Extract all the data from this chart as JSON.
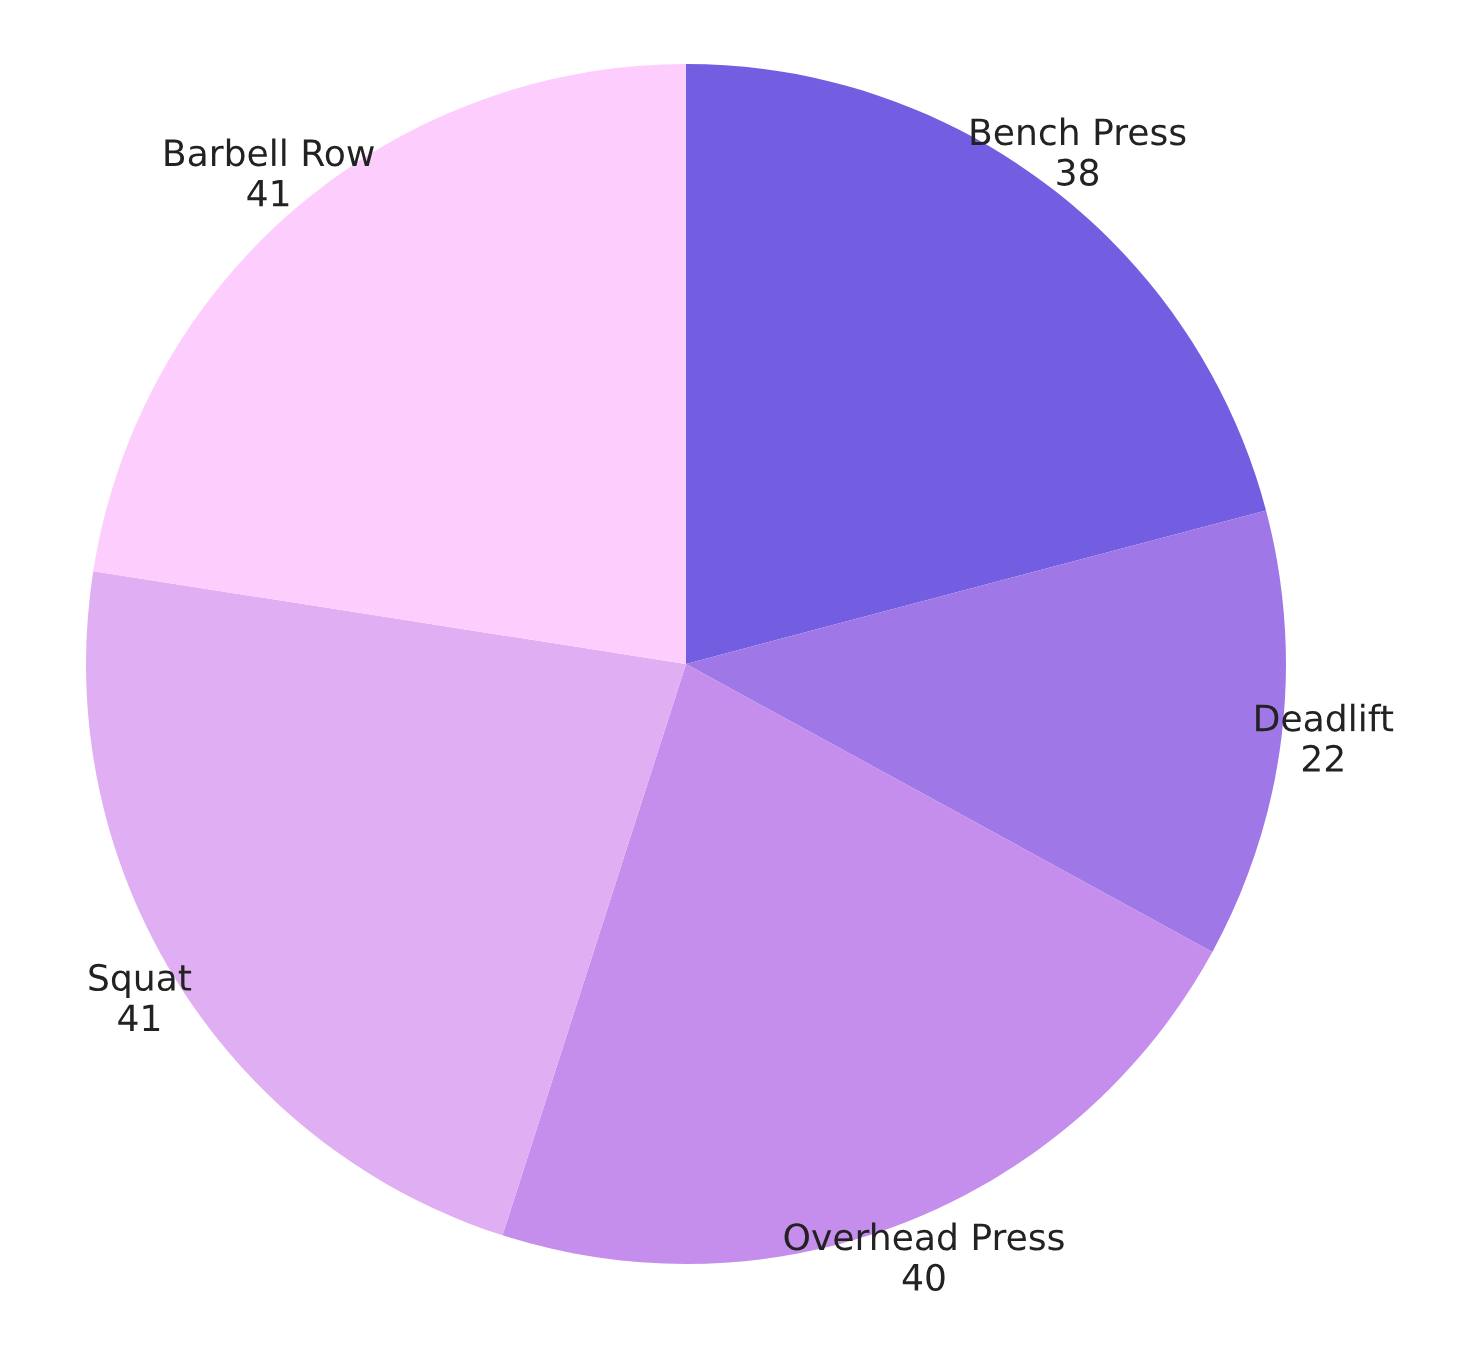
{
  "chart_data": {
    "type": "pie",
    "categories": [
      "Bench Press",
      "Deadlift",
      "Overhead Press",
      "Squat",
      "Barbell Row"
    ],
    "values": [
      38,
      22,
      40,
      41,
      41
    ],
    "colors": [
      "#735de0",
      "#a077e6",
      "#c58eec",
      "#e0aef3",
      "#fdcefd"
    ],
    "data_labels": true
  }
}
